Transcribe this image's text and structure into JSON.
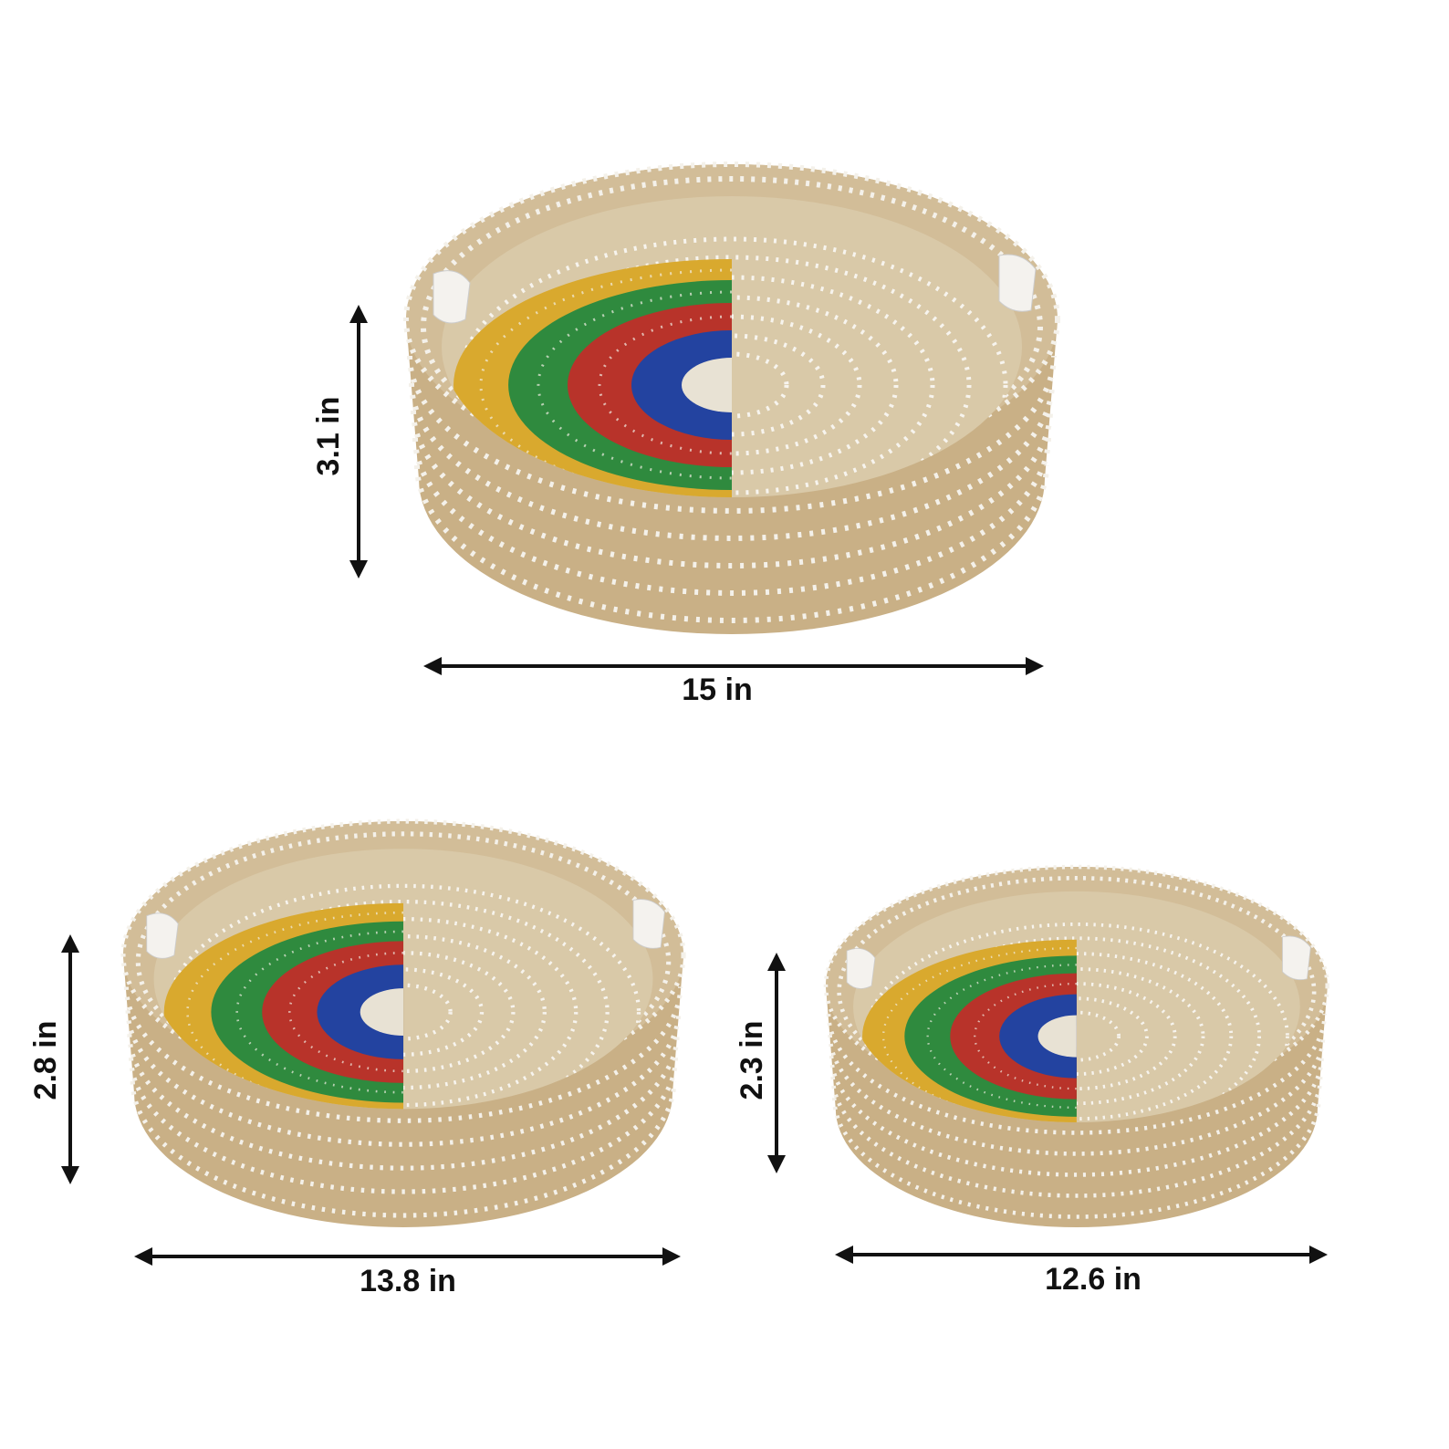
{
  "baskets": [
    {
      "height_label": "3.1 in",
      "width_label": "15 in"
    },
    {
      "height_label": "2.8 in",
      "width_label": "13.8 in"
    },
    {
      "height_label": "2.3 in",
      "width_label": "12.6 in"
    }
  ]
}
